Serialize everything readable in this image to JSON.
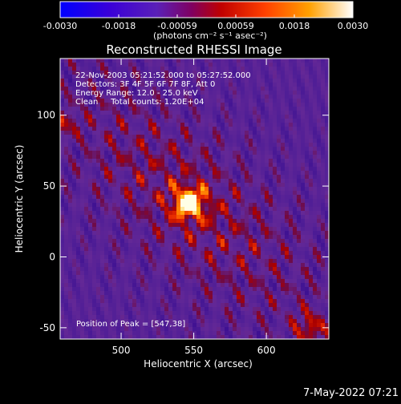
{
  "colorbar": {
    "tick_labels": [
      "-0.0030",
      "-0.0018",
      "-0.00059",
      "0.00059",
      "0.0018",
      "0.0030"
    ],
    "range": [
      -0.003,
      0.003
    ],
    "unit_label": "(photons cm⁻² s⁻¹ asec⁻²)"
  },
  "chart_data": {
    "type": "heatmap",
    "title": "Reconstructed RHESSI Image",
    "xlabel": "Heliocentric X (arcsec)",
    "ylabel": "Heliocentric Y (arcsec)",
    "xlim": [
      458,
      643
    ],
    "ylim": [
      -58,
      140
    ],
    "x_ticks": [
      500,
      550,
      600
    ],
    "y_ticks": [
      -50,
      0,
      50,
      100
    ],
    "peak": [
      547,
      38
    ],
    "colorscale": "RHESSI thermal (blue-purple-red-orange-yellow-white)",
    "annotations": [
      "22-Nov-2003 05:21:52.000 to 05:27:52.000",
      "Detectors: 3F 4F 5F 6F 7F 8F, Att 0",
      "Energy Range: 12.0 - 25.0 keV",
      "Clean     Total counts: 1.20E+04"
    ],
    "peak_label": "Position of Peak = [547,38]"
  },
  "footer": {
    "date": "7-May-2022 07:21"
  }
}
